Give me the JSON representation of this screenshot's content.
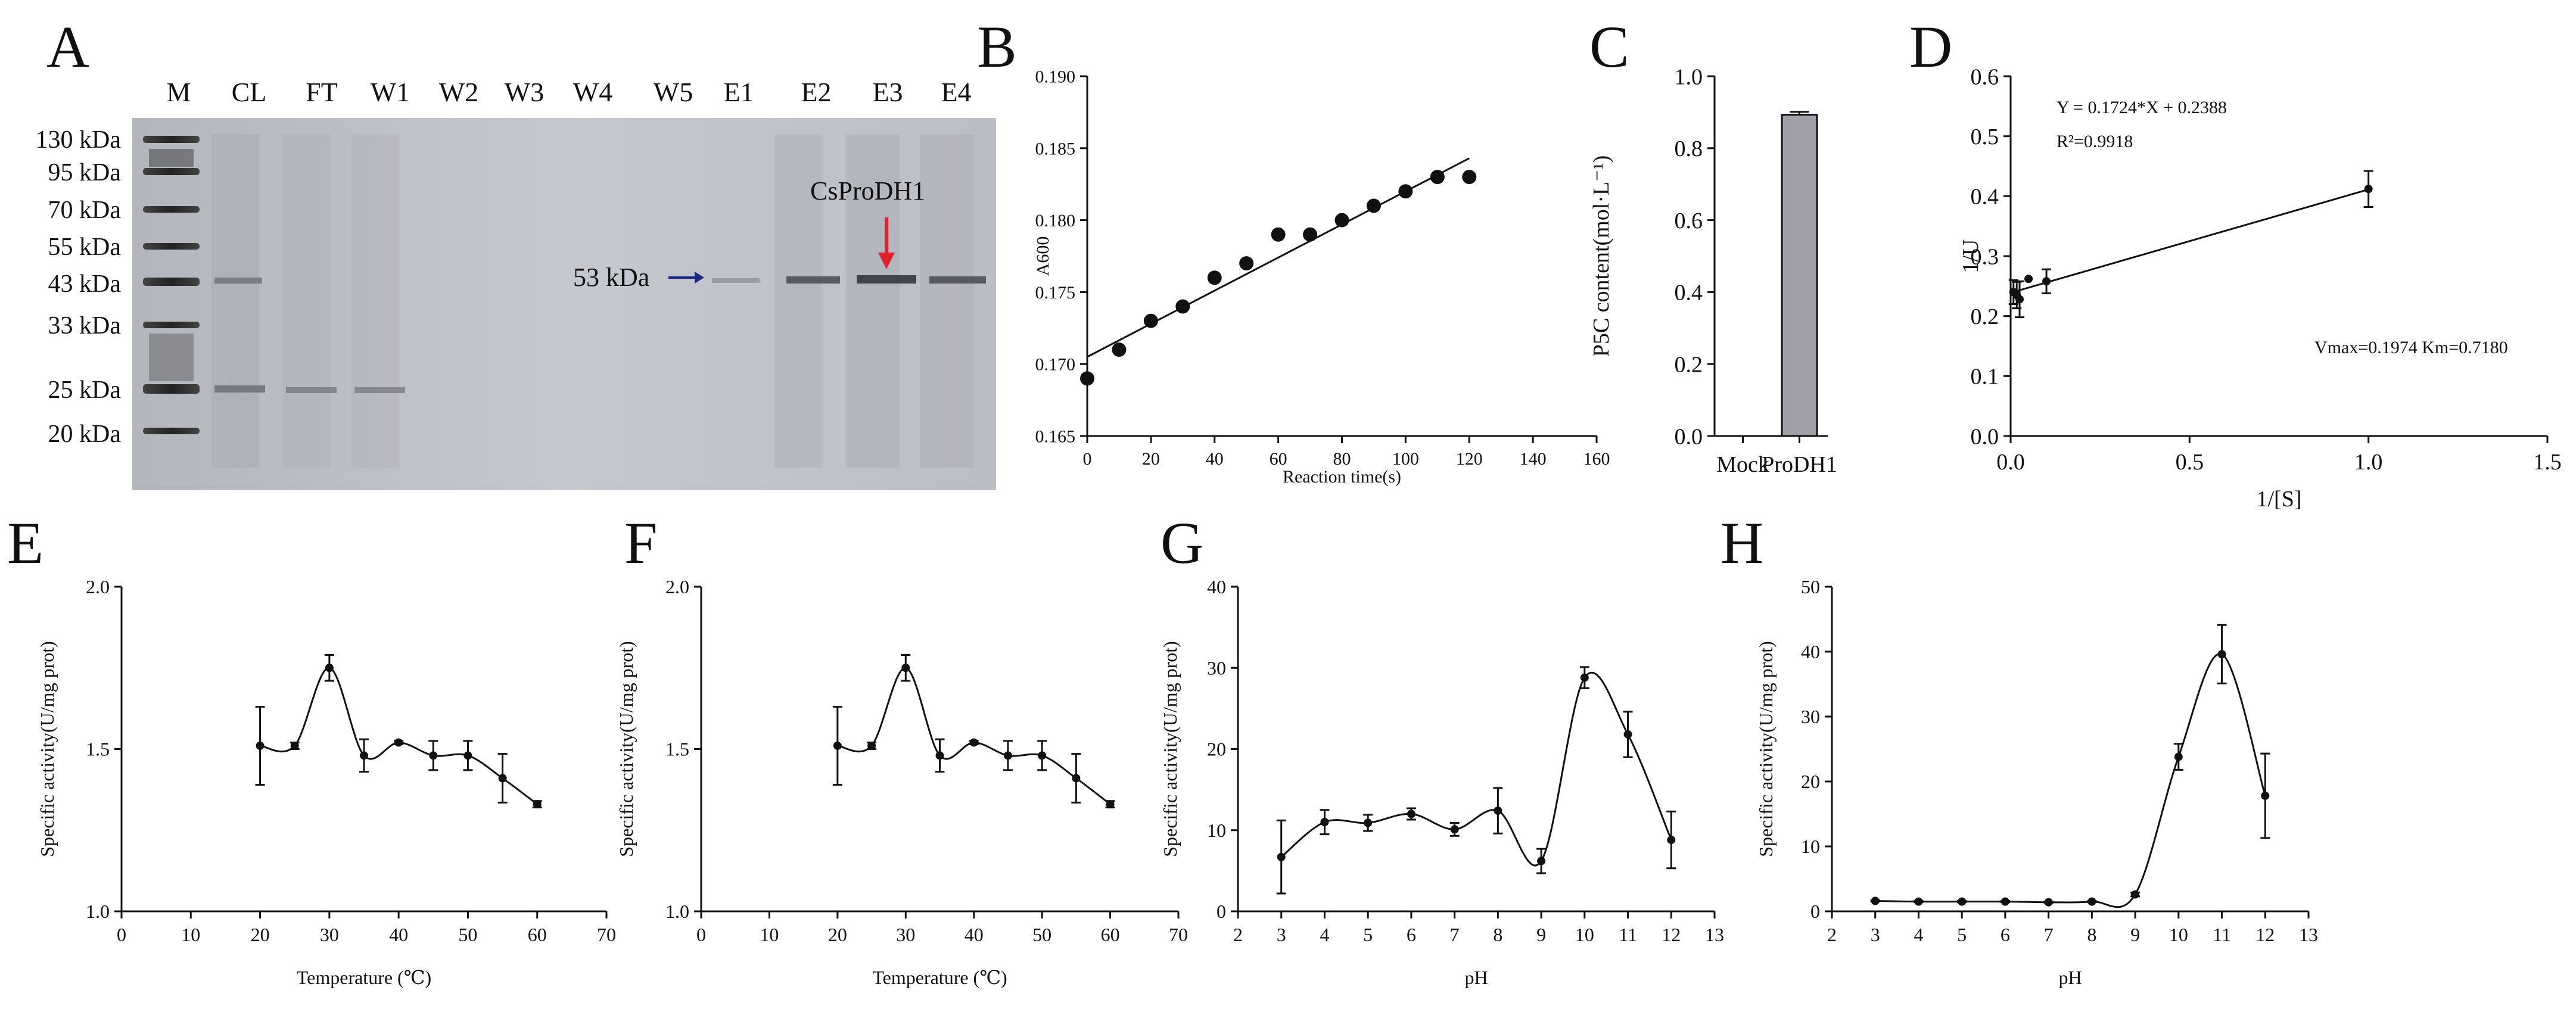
{
  "panel_letters": {
    "A": "A",
    "B": "B",
    "C": "C",
    "D": "D",
    "E": "E",
    "F": "F",
    "G": "G",
    "H": "H"
  },
  "gel": {
    "lanes": [
      "M",
      "CL",
      "FT",
      "W1",
      "W2",
      "W3",
      "W4",
      "W5",
      "E1",
      "E2",
      "E3",
      "E4"
    ],
    "markers": [
      "130 kDa",
      "95 kDa",
      "70 kDa",
      "55 kDa",
      "43 kDa",
      "33 kDa",
      "25 kDa",
      "20 kDa"
    ],
    "band_label": "53 kDa",
    "protein_label": "CsProDH1",
    "arrow_color": "#1a2a7a",
    "protein_arrow_color": "#e0202a"
  },
  "chart_data": [
    {
      "panel": "B",
      "type": "scatter",
      "x": [
        0,
        10,
        20,
        30,
        40,
        50,
        60,
        70,
        80,
        90,
        100,
        110,
        120
      ],
      "y": [
        0.169,
        0.171,
        0.173,
        0.174,
        0.176,
        0.177,
        0.179,
        0.179,
        0.18,
        0.181,
        0.182,
        0.183,
        0.183
      ],
      "fit": {
        "x0": 0,
        "y0": 0.1705,
        "x1": 120,
        "y1": 0.1843
      },
      "xlabel": "Reaction time(s)",
      "ylabel": "A600",
      "xlim": [
        0,
        160
      ],
      "ylim": [
        0.165,
        0.19
      ],
      "xticks": [
        "0",
        "20",
        "40",
        "60",
        "80",
        "100",
        "120",
        "140",
        "160"
      ],
      "yticks": [
        "0.165",
        "0.170",
        "0.175",
        "0.180",
        "0.185",
        "0.190"
      ]
    },
    {
      "panel": "C",
      "type": "bar",
      "categories": [
        "Mock",
        "ProDH1"
      ],
      "values": [
        0,
        0.893
      ],
      "errors": [
        0,
        0.008
      ],
      "bar_color": "#a0a0a8",
      "xlabel": "",
      "ylabel": "P5C content(mol·L⁻¹)",
      "ylim": [
        0,
        1.0
      ],
      "yticks": [
        "0.0",
        "0.2",
        "0.4",
        "0.6",
        "0.8",
        "1.0"
      ]
    },
    {
      "panel": "D",
      "type": "scatter",
      "x": [
        0.008,
        0.017,
        0.025,
        0.05,
        0.1,
        1.0
      ],
      "y": [
        0.24,
        0.235,
        0.228,
        0.262,
        0.258,
        0.412
      ],
      "errors": [
        0.02,
        0.022,
        0.03,
        0,
        0.02,
        0.03
      ],
      "fit": {
        "x0": 0,
        "y0": 0.2388,
        "x1": 1.0,
        "y1": 0.4112
      },
      "equation": "Y = 0.1724*X + 0.2388",
      "r2_label": "R²=0.9918",
      "kinetics_label": "Vmax=0.1974  Km=0.7180",
      "xlabel": "1/[S]",
      "ylabel": "1/U",
      "xlim": [
        0,
        1.5
      ],
      "ylim": [
        0.0,
        0.6
      ],
      "xticks": [
        "0.0",
        "0.5",
        "1.0",
        "1.5"
      ],
      "yticks": [
        "0.0",
        "0.1",
        "0.2",
        "0.3",
        "0.4",
        "0.5",
        "0.6"
      ]
    },
    {
      "panel": "E",
      "type": "line",
      "x": [
        20,
        25,
        30,
        35,
        40,
        45,
        50,
        55,
        60
      ],
      "y": [
        1.51,
        1.51,
        1.75,
        1.48,
        1.52,
        1.48,
        1.48,
        1.41,
        1.33
      ],
      "errors": [
        0.12,
        0.01,
        0.04,
        0.05,
        0.005,
        0.045,
        0.045,
        0.075,
        0.01
      ],
      "xlabel": "Temperature (℃)",
      "ylabel": "Specific activity(U/mg prot)",
      "xlim": [
        0,
        70
      ],
      "ylim": [
        1.0,
        2.0
      ],
      "xticks": [
        "0",
        "10",
        "20",
        "30",
        "40",
        "50",
        "60",
        "70"
      ],
      "yticks": [
        "1.0",
        "1.5",
        "2.0"
      ]
    },
    {
      "panel": "F",
      "type": "line",
      "x": [
        20,
        25,
        30,
        35,
        40,
        45,
        50,
        55,
        60
      ],
      "y": [
        1.51,
        1.51,
        1.75,
        1.48,
        1.52,
        1.48,
        1.48,
        1.41,
        1.33
      ],
      "errors": [
        0.12,
        0.01,
        0.04,
        0.05,
        0.005,
        0.045,
        0.045,
        0.075,
        0.01
      ],
      "xlabel": "Temperature (℃)",
      "ylabel": "Specific activity(U/mg prot)",
      "xlim": [
        0,
        70
      ],
      "ylim": [
        1.0,
        2.0
      ],
      "xticks": [
        "0",
        "10",
        "20",
        "30",
        "40",
        "50",
        "60",
        "70"
      ],
      "yticks": [
        "1.0",
        "1.5",
        "2.0"
      ]
    },
    {
      "panel": "G",
      "type": "line",
      "x": [
        3,
        4,
        5,
        6,
        7,
        8,
        9,
        10,
        11,
        12
      ],
      "y": [
        6.7,
        11.0,
        10.9,
        12.0,
        10.1,
        12.4,
        6.2,
        28.8,
        21.8,
        8.8
      ],
      "errors": [
        4.5,
        1.5,
        1.0,
        0.7,
        0.8,
        2.8,
        1.5,
        1.3,
        2.8,
        3.5
      ],
      "xlabel": "pH",
      "ylabel": "Specific activity(U/mg prot)",
      "xlim": [
        2,
        13
      ],
      "ylim": [
        0,
        40
      ],
      "xticks": [
        "2",
        "3",
        "4",
        "5",
        "6",
        "7",
        "8",
        "9",
        "10",
        "11",
        "12",
        "13"
      ],
      "yticks": [
        "0",
        "10",
        "20",
        "30",
        "40"
      ]
    },
    {
      "panel": "H",
      "type": "line",
      "x": [
        3,
        4,
        5,
        6,
        7,
        8,
        9,
        10,
        11,
        12
      ],
      "y": [
        1.6,
        1.5,
        1.5,
        1.5,
        1.4,
        1.5,
        2.6,
        23.8,
        39.6,
        17.8
      ],
      "errors": [
        0.1,
        0.1,
        0.1,
        0.1,
        0.1,
        0.1,
        0.3,
        2.0,
        4.5,
        6.5
      ],
      "xlabel": "pH",
      "ylabel": "Specific activity(U/mg prot)",
      "xlim": [
        2,
        13
      ],
      "ylim": [
        0,
        50
      ],
      "xticks": [
        "2",
        "3",
        "4",
        "5",
        "6",
        "7",
        "8",
        "9",
        "10",
        "11",
        "12",
        "13"
      ],
      "yticks": [
        "0",
        "10",
        "20",
        "30",
        "40",
        "50"
      ]
    }
  ]
}
